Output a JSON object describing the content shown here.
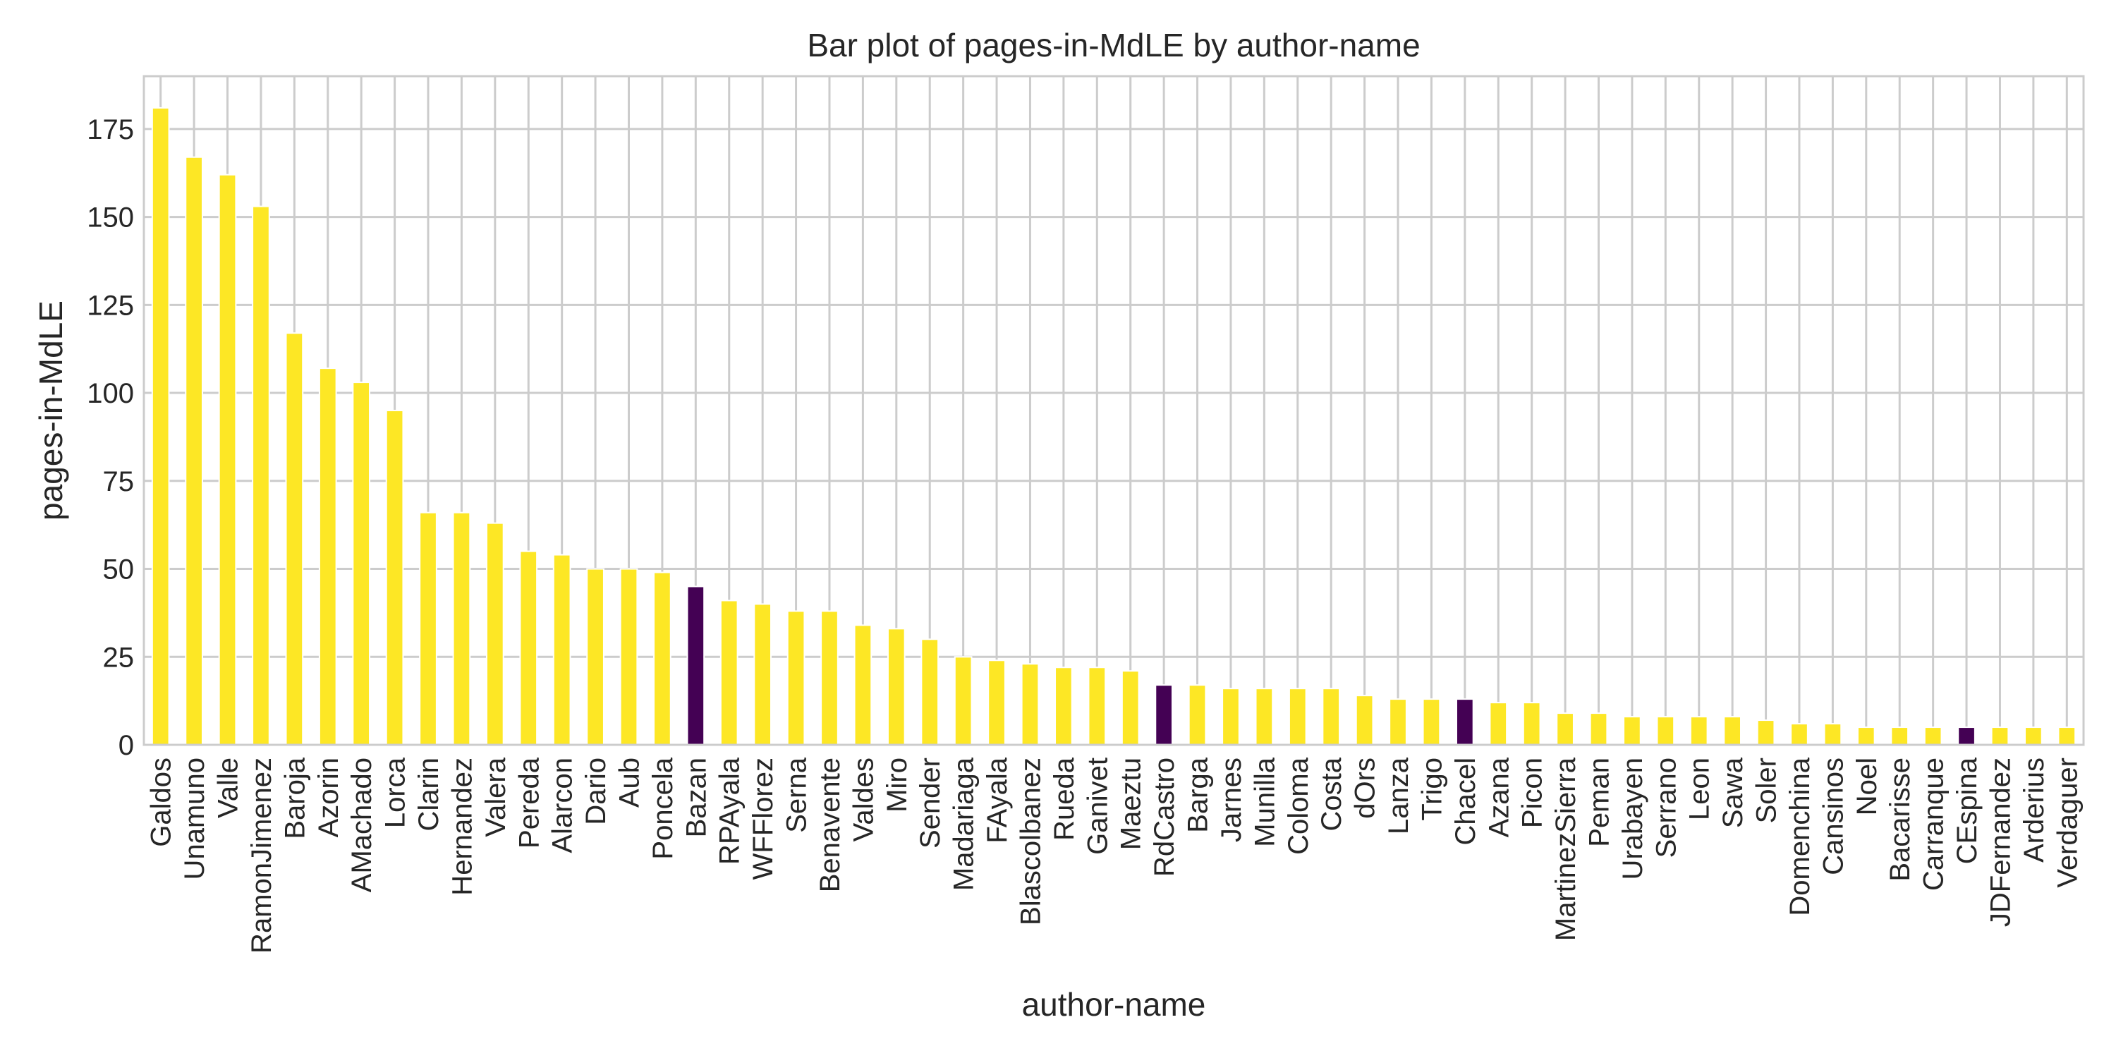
{
  "chart_data": {
    "type": "bar",
    "title": "Bar plot of pages-in-MdLE by author-name",
    "xlabel": "author-name",
    "ylabel": "pages-in-MdLE",
    "ylim": [
      0,
      190
    ],
    "yticks": [
      0,
      25,
      50,
      75,
      100,
      125,
      150,
      175
    ],
    "grid": true,
    "legend": "none",
    "colors": {
      "default": "#fde725",
      "highlight": "#440154"
    },
    "categories": [
      "Galdos",
      "Unamuno",
      "Valle",
      "RamonJimenez",
      "Baroja",
      "Azorin",
      "AMachado",
      "Lorca",
      "Clarin",
      "Hernandez",
      "Valera",
      "Pereda",
      "Alarcon",
      "Dario",
      "Aub",
      "Poncela",
      "Bazan",
      "RPAyala",
      "WFFlorez",
      "Serna",
      "Benavente",
      "Valdes",
      "Miro",
      "Sender",
      "Madariaga",
      "FAyala",
      "Blascolbanez",
      "Rueda",
      "Ganivet",
      "Maeztu",
      "RdCastro",
      "Barga",
      "Jarnes",
      "Munilla",
      "Coloma",
      "Costa",
      "dOrs",
      "Lanza",
      "Trigo",
      "Chacel",
      "Azana",
      "Picon",
      "MartinezSierra",
      "Peman",
      "Urabayen",
      "Serrano",
      "Leon",
      "Sawa",
      "Soler",
      "Domenchina",
      "Cansinos",
      "Noel",
      "Bacarisse",
      "Carranque",
      "CEspina",
      "JDFernandez",
      "Arderius",
      "Verdaguer"
    ],
    "values": [
      181,
      167,
      162,
      153,
      117,
      107,
      103,
      95,
      66,
      66,
      63,
      55,
      54,
      50,
      50,
      49,
      45,
      41,
      40,
      38,
      38,
      34,
      33,
      30,
      25,
      24,
      23,
      22,
      22,
      21,
      17,
      17,
      16,
      16,
      16,
      16,
      14,
      13,
      13,
      13,
      12,
      12,
      9,
      9,
      8,
      8,
      8,
      8,
      7,
      6,
      6,
      5,
      5,
      5,
      5,
      5,
      5,
      5
    ],
    "highlighted": [
      "Bazan",
      "RdCastro",
      "Chacel",
      "CEspina"
    ]
  }
}
